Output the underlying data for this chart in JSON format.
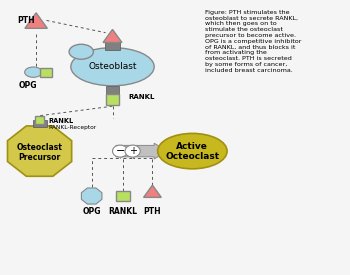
{
  "bg_color": "#f5f5f5",
  "text_color": "#000000",
  "figure_text": "Figure: PTH stimulates the\nosteoblast to secrete RANKL,\nwhich then goes on to\nstimulate the osteoclast\nprecursor to become active.\nOPG is a competitive inhibitor\nof RANKL, and thus blocks it\nfrom activating the\nosteoclast. PTH is secreted\nby some forms of cancer,\nincluded breast carcinoma.",
  "osteoblast_color": "#a8d8e8",
  "osteoclast_precursor_color": "#d4c84a",
  "active_octeoclast_color": "#c8b820",
  "pth_color": "#f08080",
  "opg_color": "#a8d8e8",
  "rankl_color": "#b8e060",
  "receptor_color": "#808080",
  "arrow_color": "#909090"
}
